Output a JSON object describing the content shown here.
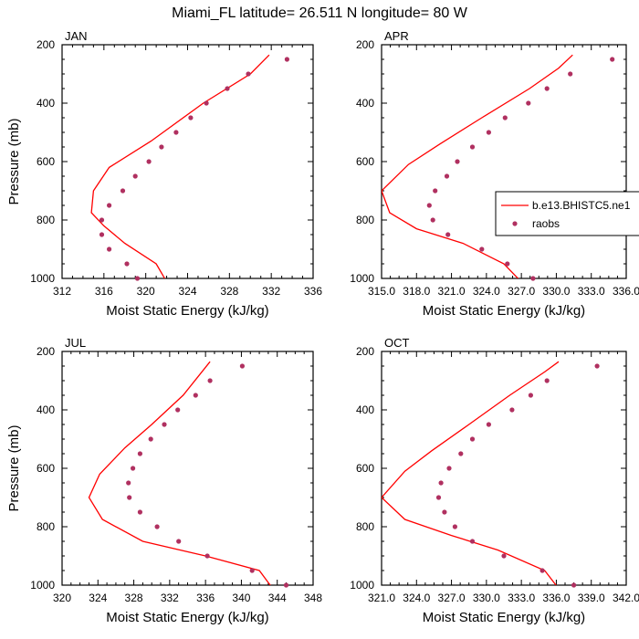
{
  "title": "Miami_FL  latitude= 26.511 N longitude= 80 W",
  "colors": {
    "model": "#ff0000",
    "obs": "#b03060",
    "axis": "#000000"
  },
  "legend": {
    "position": "right-of-APR-panel",
    "model": "b.e13.BHISTC5.ne1",
    "obs": "raobs"
  },
  "chart_data": [
    {
      "type": "line",
      "panel": "JAN",
      "xlabel": "Moist Static Energy (kJ/kg)",
      "ylabel": "Pressure (mb)",
      "xlim": [
        312,
        336
      ],
      "ylim": [
        1000,
        200
      ],
      "xticks": [
        312,
        316,
        320,
        324,
        328,
        332,
        336
      ],
      "xtick_labels": [
        "312",
        "316",
        "320",
        "324",
        "328",
        "332",
        "336"
      ],
      "yticks": [
        200,
        400,
        600,
        800,
        1000
      ],
      "ytick_labels": [
        "200",
        "400",
        "600",
        "800",
        "1000"
      ],
      "series": [
        {
          "name": "b.e13.BHISTC5.ne1",
          "style": "line",
          "points": [
            [
              322.0,
              1012
            ],
            [
              321.0,
              950
            ],
            [
              318.0,
              880
            ],
            [
              316.0,
              820
            ],
            [
              314.8,
              775
            ],
            [
              315.0,
              700
            ],
            [
              316.5,
              620
            ],
            [
              320.5,
              530
            ],
            [
              325.5,
              400
            ],
            [
              330.0,
              300
            ],
            [
              331.8,
              235
            ]
          ]
        },
        {
          "name": "raobs",
          "style": "marker",
          "points": [
            [
              319.2,
              1000
            ],
            [
              318.2,
              950
            ],
            [
              316.5,
              900
            ],
            [
              315.8,
              850
            ],
            [
              315.8,
              800
            ],
            [
              316.5,
              750
            ],
            [
              317.8,
              700
            ],
            [
              319.0,
              650
            ],
            [
              320.3,
              600
            ],
            [
              321.5,
              550
            ],
            [
              322.9,
              500
            ],
            [
              324.3,
              450
            ],
            [
              325.8,
              400
            ],
            [
              327.8,
              350
            ],
            [
              329.8,
              300
            ],
            [
              333.5,
              250
            ]
          ]
        }
      ]
    },
    {
      "type": "line",
      "panel": "APR",
      "xlabel": "Moist Static Energy (kJ/kg)",
      "ylabel": "",
      "xlim": [
        315,
        336
      ],
      "ylim": [
        1000,
        200
      ],
      "xticks": [
        315,
        318,
        321,
        324,
        327,
        330,
        333,
        336
      ],
      "xtick_labels": [
        "315.0",
        "318.0",
        "321.0",
        "324.0",
        "327.0",
        "330.0",
        "333.0",
        "336.0"
      ],
      "yticks": [
        200,
        400,
        600,
        800,
        1000
      ],
      "ytick_labels": [
        "200",
        "400",
        "600",
        "800",
        "1000"
      ],
      "series": [
        {
          "name": "b.e13.BHISTC5.ne1",
          "style": "line",
          "points": [
            [
              327.0,
              1012
            ],
            [
              325.5,
              950
            ],
            [
              322.0,
              880
            ],
            [
              318.0,
              830
            ],
            [
              315.7,
              775
            ],
            [
              315.0,
              700
            ],
            [
              317.3,
              610
            ],
            [
              320.0,
              540
            ],
            [
              323.6,
              450
            ],
            [
              327.7,
              350
            ],
            [
              330.2,
              280
            ],
            [
              331.4,
              235
            ]
          ]
        },
        {
          "name": "raobs",
          "style": "marker",
          "points": [
            [
              328.0,
              1000
            ],
            [
              325.8,
              950
            ],
            [
              323.6,
              900
            ],
            [
              320.7,
              850
            ],
            [
              319.4,
              800
            ],
            [
              319.1,
              750
            ],
            [
              319.6,
              700
            ],
            [
              320.6,
              650
            ],
            [
              321.5,
              600
            ],
            [
              322.8,
              550
            ],
            [
              324.2,
              500
            ],
            [
              325.6,
              450
            ],
            [
              327.6,
              400
            ],
            [
              329.2,
              350
            ],
            [
              331.2,
              300
            ],
            [
              334.8,
              250
            ]
          ]
        }
      ]
    },
    {
      "type": "line",
      "panel": "JUL",
      "xlabel": "Moist Static Energy (kJ/kg)",
      "ylabel": "Pressure (mb)",
      "xlim": [
        320,
        348
      ],
      "ylim": [
        1000,
        200
      ],
      "xticks": [
        320,
        324,
        328,
        332,
        336,
        340,
        344,
        348
      ],
      "xtick_labels": [
        "320",
        "324",
        "328",
        "332",
        "336",
        "340",
        "344",
        "348"
      ],
      "yticks": [
        200,
        400,
        600,
        800,
        1000
      ],
      "ytick_labels": [
        "200",
        "400",
        "600",
        "800",
        "1000"
      ],
      "series": [
        {
          "name": "b.e13.BHISTC5.ne1",
          "style": "line",
          "points": [
            [
              343.5,
              1012
            ],
            [
              342.0,
              950
            ],
            [
              336.0,
              900
            ],
            [
              329.0,
              850
            ],
            [
              324.5,
              775
            ],
            [
              323.0,
              700
            ],
            [
              324.2,
              620
            ],
            [
              327.0,
              530
            ],
            [
              330.0,
              450
            ],
            [
              333.5,
              350
            ],
            [
              336.5,
              235
            ]
          ]
        },
        {
          "name": "raobs",
          "style": "marker",
          "points": [
            [
              345.0,
              1000
            ],
            [
              341.2,
              950
            ],
            [
              336.2,
              900
            ],
            [
              333.0,
              850
            ],
            [
              330.6,
              800
            ],
            [
              328.7,
              750
            ],
            [
              327.5,
              700
            ],
            [
              327.4,
              650
            ],
            [
              327.9,
              600
            ],
            [
              328.7,
              550
            ],
            [
              329.9,
              500
            ],
            [
              331.4,
              450
            ],
            [
              332.9,
              400
            ],
            [
              334.9,
              350
            ],
            [
              336.5,
              300
            ],
            [
              340.1,
              250
            ]
          ]
        }
      ]
    },
    {
      "type": "line",
      "panel": "OCT",
      "xlabel": "Moist Static Energy (kJ/kg)",
      "ylabel": "",
      "xlim": [
        321,
        342
      ],
      "ylim": [
        1000,
        200
      ],
      "xticks": [
        321,
        324,
        327,
        330,
        333,
        336,
        339,
        342
      ],
      "xtick_labels": [
        "321.0",
        "324.0",
        "327.0",
        "330.0",
        "333.0",
        "336.0",
        "339.0",
        "342.0"
      ],
      "yticks": [
        200,
        400,
        600,
        800,
        1000
      ],
      "ytick_labels": [
        "200",
        "400",
        "600",
        "800",
        "1000"
      ],
      "series": [
        {
          "name": "b.e13.BHISTC5.ne1",
          "style": "line",
          "points": [
            [
              336.2,
              1012
            ],
            [
              335.0,
              950
            ],
            [
              331.0,
              880
            ],
            [
              327.0,
              830
            ],
            [
              323.0,
              775
            ],
            [
              321.0,
              700
            ],
            [
              323.0,
              610
            ],
            [
              325.3,
              540
            ],
            [
              328.5,
              450
            ],
            [
              332.0,
              350
            ],
            [
              335.0,
              270
            ],
            [
              336.2,
              235
            ]
          ]
        },
        {
          "name": "raobs",
          "style": "marker",
          "points": [
            [
              337.5,
              1000
            ],
            [
              334.8,
              950
            ],
            [
              331.5,
              900
            ],
            [
              328.8,
              850
            ],
            [
              327.3,
              800
            ],
            [
              326.4,
              750
            ],
            [
              325.9,
              700
            ],
            [
              326.1,
              650
            ],
            [
              326.8,
              600
            ],
            [
              327.8,
              550
            ],
            [
              328.8,
              500
            ],
            [
              330.2,
              450
            ],
            [
              332.2,
              400
            ],
            [
              333.8,
              350
            ],
            [
              335.2,
              300
            ],
            [
              339.5,
              250
            ]
          ]
        }
      ]
    }
  ]
}
